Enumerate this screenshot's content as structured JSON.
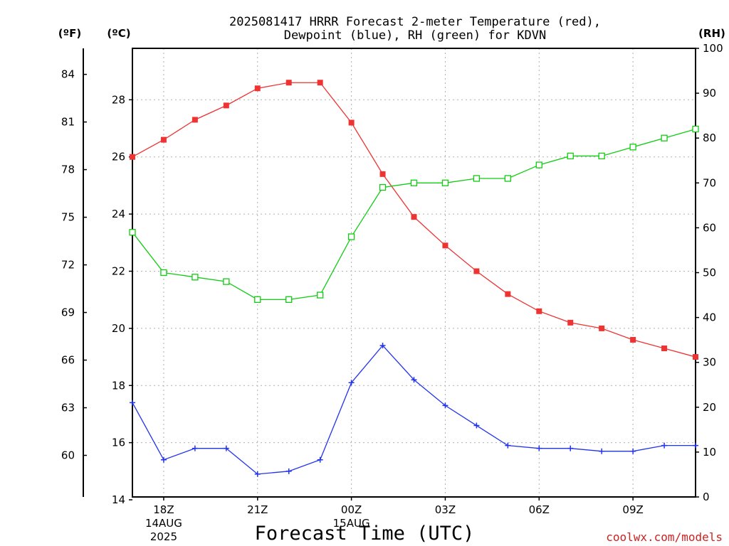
{
  "title_line1": "2025081417 HRRR Forecast 2-meter Temperature (red),",
  "title_line2": "Dewpoint (blue), RH (green) for KDVN",
  "unit_f": "(ºF)",
  "unit_c": "(ºC)",
  "unit_rh": "(RH)",
  "xlabel": "Forecast Time (UTC)",
  "credit": "coolwx.com/models",
  "colors": {
    "temperature": "#ee3333",
    "dewpoint": "#2233ee",
    "rh": "#11cc11",
    "credit": "#cc2222"
  },
  "chart_data": {
    "type": "line",
    "hours": [
      17,
      18,
      19,
      20,
      21,
      22,
      23,
      24,
      25,
      26,
      27,
      28,
      29,
      30,
      31,
      32,
      33,
      34,
      35
    ],
    "x_ticks": [
      {
        "hour": 18,
        "label": "18Z",
        "sub1": "14AUG",
        "sub2": "2025"
      },
      {
        "hour": 21,
        "label": "21Z",
        "sub1": "",
        "sub2": ""
      },
      {
        "hour": 24,
        "label": "00Z",
        "sub1": "15AUG",
        "sub2": ""
      },
      {
        "hour": 27,
        "label": "03Z",
        "sub1": "",
        "sub2": ""
      },
      {
        "hour": 30,
        "label": "06Z",
        "sub1": "",
        "sub2": ""
      },
      {
        "hour": 33,
        "label": "09Z",
        "sub1": "",
        "sub2": ""
      }
    ],
    "ylim_c": [
      14.1,
      29.8
    ],
    "c_ticks": [
      14,
      16,
      18,
      20,
      22,
      24,
      26,
      28
    ],
    "f_ticks": [
      60,
      63,
      66,
      69,
      72,
      75,
      78,
      81,
      84
    ],
    "rh_ticks": [
      0,
      10,
      20,
      30,
      40,
      50,
      60,
      70,
      80,
      90,
      100
    ],
    "ylim_rh": [
      0,
      100
    ],
    "grid": true,
    "series": [
      {
        "key": "temperature",
        "marker": "filled-square",
        "values": [
          26.0,
          26.6,
          27.3,
          27.8,
          28.4,
          28.6,
          28.6,
          27.2,
          25.4,
          23.9,
          22.9,
          22.0,
          21.2,
          20.6,
          20.2,
          20.0,
          19.6,
          19.3,
          19.0
        ]
      },
      {
        "key": "dewpoint",
        "marker": "plus",
        "values": [
          17.4,
          15.4,
          15.8,
          15.8,
          14.9,
          15.0,
          15.4,
          18.1,
          19.4,
          18.2,
          17.3,
          16.6,
          15.9,
          15.8,
          15.8,
          15.7,
          15.7,
          15.9,
          15.9
        ]
      },
      {
        "key": "rh",
        "marker": "open-square",
        "values": [
          59,
          50,
          49,
          48,
          44,
          44,
          45,
          58,
          69,
          70,
          70,
          71,
          71,
          74,
          76,
          76,
          78,
          80,
          82
        ]
      }
    ]
  }
}
